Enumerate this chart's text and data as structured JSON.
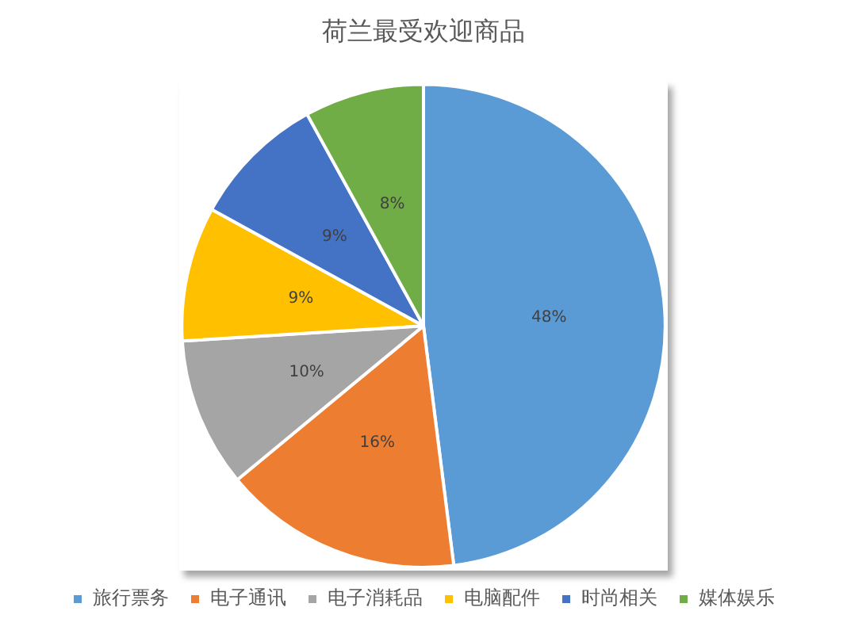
{
  "chart_data": {
    "type": "pie",
    "title": "荷兰最受欢迎商品",
    "categories": [
      "旅行票务",
      "电子通讯",
      "电子消耗品",
      "电脑配件",
      "时尚相关",
      "媒体娱乐"
    ],
    "values": [
      48,
      16,
      10,
      9,
      9,
      8
    ],
    "colors": [
      "#5b9bd5",
      "#ed7d31",
      "#a5a5a5",
      "#ffc000",
      "#4472c4",
      "#70ad47"
    ],
    "value_labels": [
      "48%",
      "16%",
      "10%",
      "9%",
      "9%",
      "8%"
    ],
    "legend": "bottom"
  }
}
